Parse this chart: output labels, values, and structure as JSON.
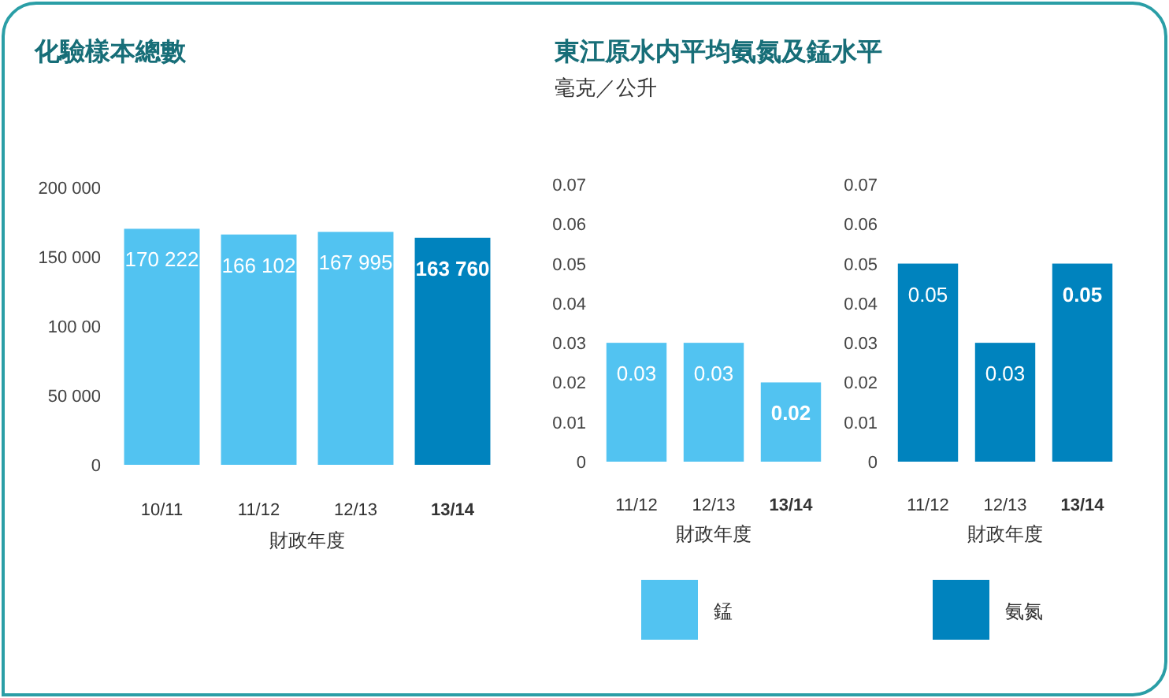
{
  "chart_data": [
    {
      "type": "bar",
      "title": "化驗樣本總數",
      "categories": [
        "10/11",
        "11/12",
        "12/13",
        "13/14"
      ],
      "values": [
        170222,
        166102,
        167995,
        163760
      ],
      "colors": [
        "#52c3f1",
        "#52c3f1",
        "#52c3f1",
        "#0083be"
      ],
      "value_labels": [
        "170 222",
        "166 102",
        "167 995",
        "163 760"
      ],
      "xlabel": "財政年度",
      "ylim": [
        0,
        200000
      ],
      "yticks": [
        0,
        {
          "value": 50000,
          "label": "50 000"
        },
        {
          "value": 100000,
          "label": "100 00"
        },
        {
          "value": 150000,
          "label": "150 000"
        },
        {
          "value": 200000,
          "label": "200 000"
        }
      ]
    },
    {
      "type": "bar",
      "title": "東江原水内平均氨氮及錳水平",
      "subtitle": "毫克／公升",
      "categories": [
        "11/12",
        "12/13",
        "13/14"
      ],
      "series": [
        {
          "name": "錳",
          "color": "#52c3f1",
          "values": [
            0.03,
            0.03,
            0.02
          ]
        }
      ],
      "data_labels": true,
      "xlabel": "財政年度",
      "ylim": [
        0,
        0.07
      ],
      "yticks": [
        0,
        0.01,
        0.02,
        0.03,
        0.04,
        0.05,
        0.06,
        0.07
      ],
      "legend": "bottom"
    },
    {
      "type": "bar",
      "categories": [
        "11/12",
        "12/13",
        "13/14"
      ],
      "series": [
        {
          "name": "氨氮",
          "color": "#0083be",
          "values": [
            0.05,
            0.03,
            0.05
          ]
        }
      ],
      "data_labels": true,
      "xlabel": "財政年度",
      "ylim": [
        0,
        0.07
      ],
      "yticks": [
        0,
        0.01,
        0.02,
        0.03,
        0.04,
        0.05,
        0.06,
        0.07
      ],
      "legend": "bottom"
    }
  ]
}
